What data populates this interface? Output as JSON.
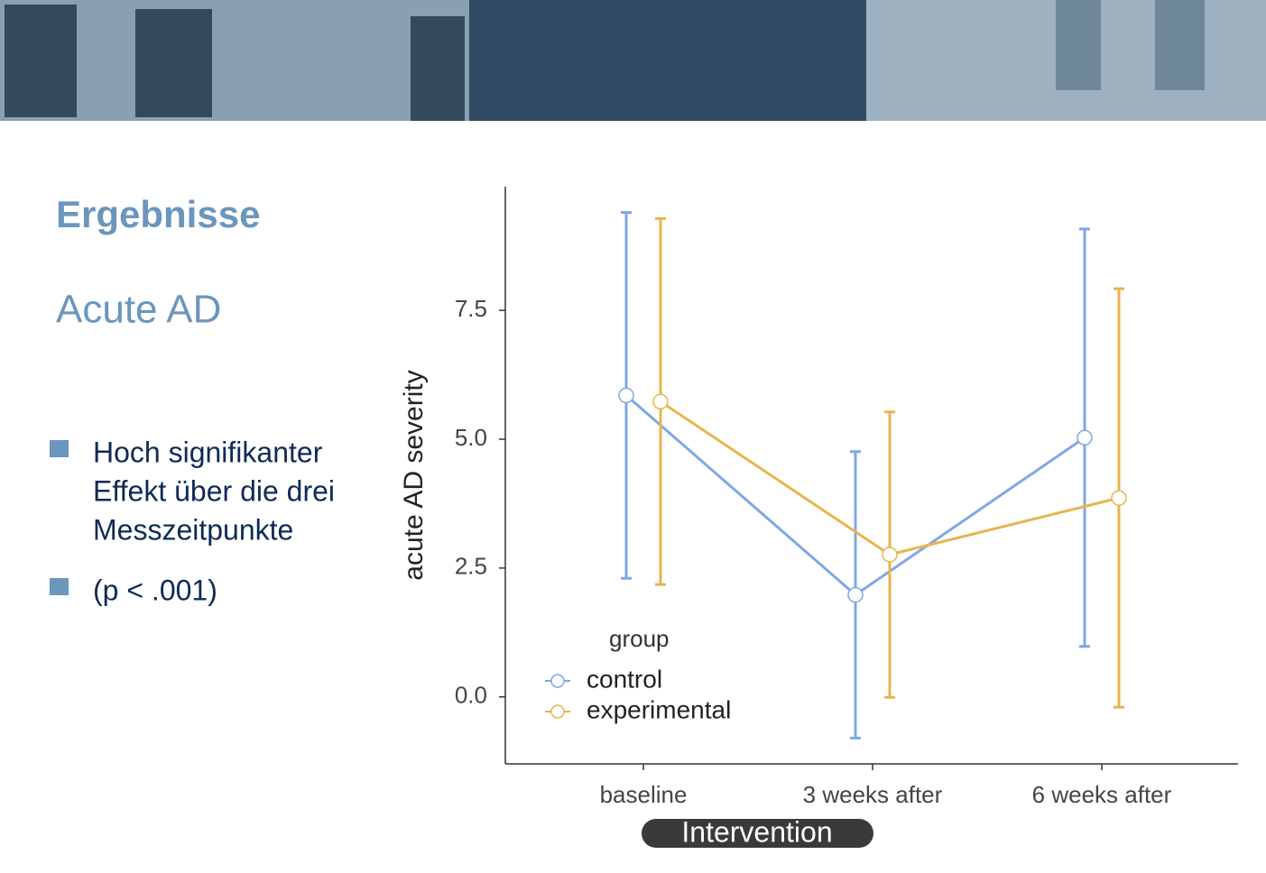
{
  "slide": {
    "title": "Ergebnisse",
    "subtitle": "Acute AD",
    "bullets": [
      [
        "Hoch signifikanter",
        "Effekt über die drei",
        "Messzeitpunkte"
      ],
      [
        "(p < .001)"
      ]
    ],
    "badge": "Intervention"
  },
  "chart_data": {
    "type": "line",
    "y_label": "acute AD severity",
    "legend_title": "group",
    "legend": "lower-left",
    "categories": [
      "baseline",
      "3 weeks after",
      "6 weeks after"
    ],
    "series": [
      {
        "name": "control",
        "color": "#7fa8e6",
        "values": [
          5.85,
          1.98,
          5.03
        ],
        "errors": [
          3.55,
          2.78,
          4.05
        ]
      },
      {
        "name": "experimental",
        "color": "#e8b44f",
        "values": [
          5.73,
          2.76,
          3.86
        ],
        "errors": [
          3.55,
          2.77,
          4.06
        ]
      }
    ],
    "ylim": [
      -1.3,
      9.9
    ],
    "yticks": [
      {
        "value": 0,
        "label": "0.0"
      },
      {
        "value": 2.5,
        "label": "2.5"
      },
      {
        "value": 5,
        "label": "5.0"
      },
      {
        "value": 7.5,
        "label": "7.5"
      }
    ]
  }
}
